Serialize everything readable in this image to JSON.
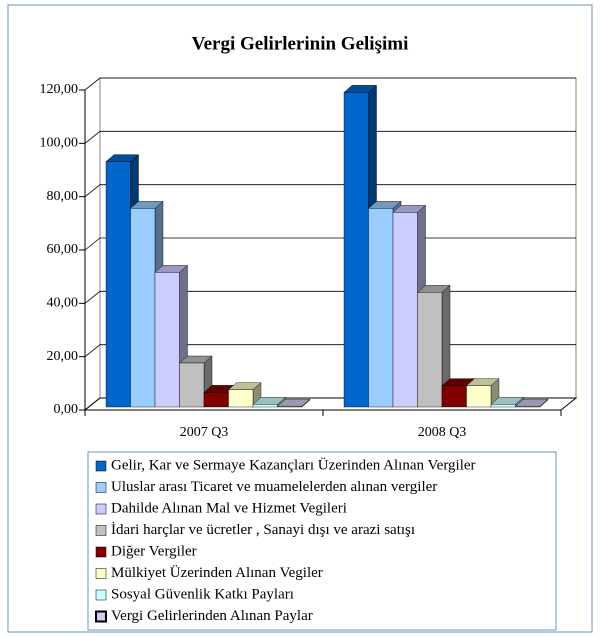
{
  "chart_data": {
    "type": "bar3d",
    "title": "Vergi Gelirlerinin Gelişimi",
    "categories": [
      "2007 Q3",
      "2008 Q3"
    ],
    "series": [
      {
        "name": "Gelir, Kar ve Sermaye Kazançları Üzerinden Alınan Vergiler",
        "color": "#0066cc",
        "values": [
          92,
          118
        ]
      },
      {
        "name": "Uluslar arası Ticaret ve muamelelerden alınan vergiler",
        "color": "#99ccff",
        "values": [
          74.5,
          74.5
        ]
      },
      {
        "name": "Dahilde Alınan Mal ve Hizmet Vegileri",
        "color": "#ccccff",
        "values": [
          50.5,
          73
        ]
      },
      {
        "name": "İdari harçlar ve ücretler , Sanayi dışı ve arazi satışı",
        "color": "#c0c0c0",
        "values": [
          16.5,
          43
        ]
      },
      {
        "name": "Diğer Vergiler",
        "color": "#800000",
        "values": [
          5.5,
          8
        ]
      },
      {
        "name": "Mülkiyet Üzerinden Alınan Vegiler",
        "color": "#ffffcc",
        "values": [
          6.5,
          8
        ]
      },
      {
        "name": "Sosyal Güvenlik Katkı Payları",
        "color": "#ccffff",
        "values": [
          1,
          1
        ]
      },
      {
        "name": "Vergi Gelirlerinden Alınan Paylar",
        "color": "#ccccee",
        "values": [
          0.3,
          0.3
        ]
      }
    ],
    "ylim": [
      0,
      120
    ],
    "yticks": [
      {
        "value": 0,
        "label": "0,00"
      },
      {
        "value": 20,
        "label": "20,00"
      },
      {
        "value": 40,
        "label": "40,00"
      },
      {
        "value": 60,
        "label": "60,00"
      },
      {
        "value": 80,
        "label": "80,00"
      },
      {
        "value": 100,
        "label": "100,00"
      },
      {
        "value": 120,
        "label": "120,00"
      }
    ],
    "grid": true
  }
}
